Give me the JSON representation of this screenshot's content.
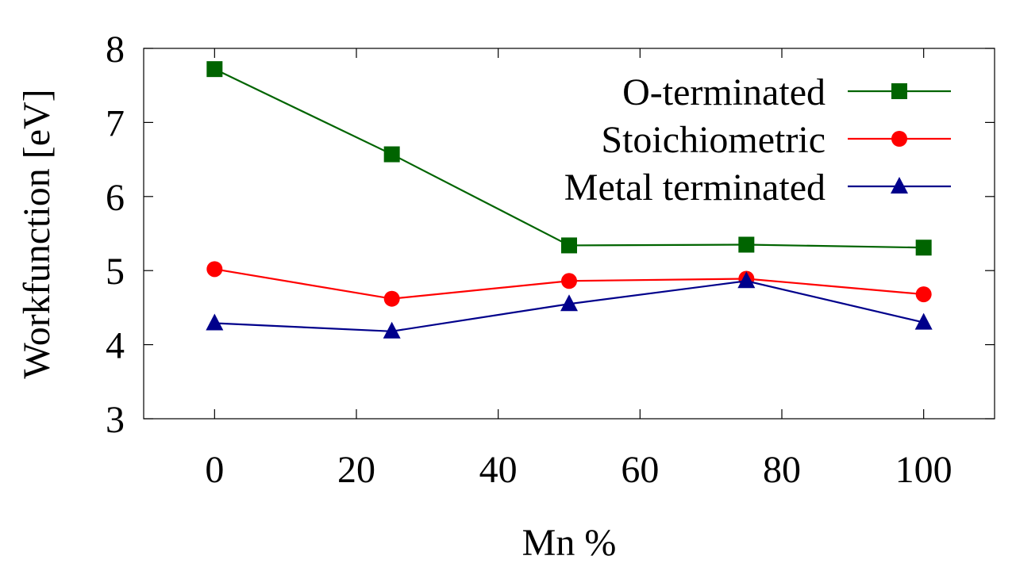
{
  "chart_data": {
    "type": "line",
    "title": "",
    "xlabel": "Mn %",
    "ylabel": "Workfunction [eV]",
    "xlim": [
      -10,
      110
    ],
    "ylim": [
      3,
      8
    ],
    "xticks": [
      0,
      20,
      40,
      60,
      80,
      100
    ],
    "yticks": [
      3,
      4,
      5,
      6,
      7,
      8
    ],
    "grid": false,
    "legend_position": "top-right",
    "x": [
      0,
      25,
      50,
      75,
      100
    ],
    "series": [
      {
        "name": "O-terminated",
        "color": "#006400",
        "marker": "square",
        "values": [
          7.72,
          6.57,
          5.34,
          5.35,
          5.31
        ]
      },
      {
        "name": "Stoichiometric",
        "color": "#ff0000",
        "marker": "circle",
        "values": [
          5.02,
          4.62,
          4.86,
          4.89,
          4.68
        ]
      },
      {
        "name": "Metal terminated",
        "color": "#00008b",
        "marker": "triangle",
        "values": [
          4.29,
          4.18,
          4.55,
          4.86,
          4.3
        ]
      }
    ]
  }
}
